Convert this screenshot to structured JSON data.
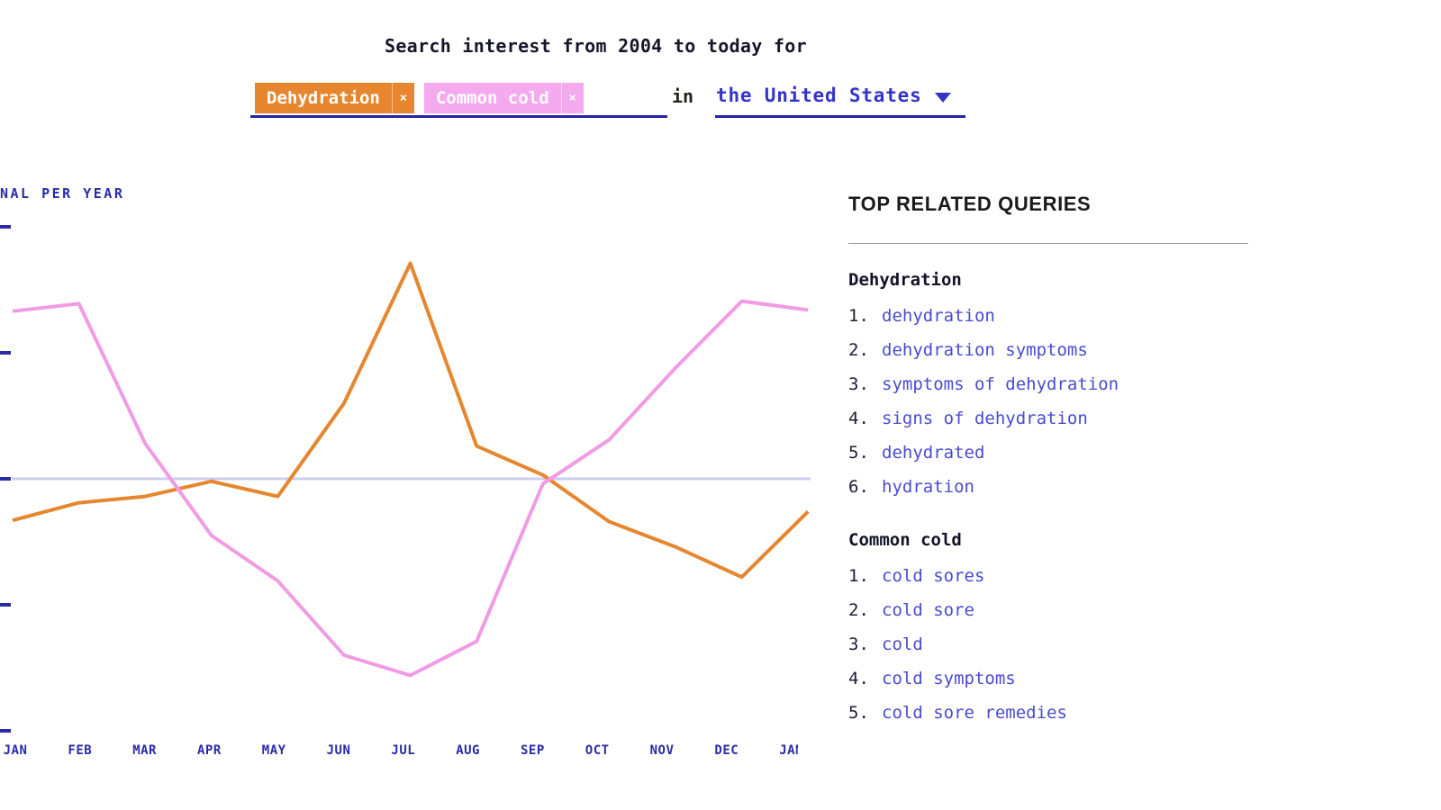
{
  "header": {
    "title": "Search interest from 2004 to today for",
    "terms": [
      {
        "label": "Dehydration",
        "remove_label": "×",
        "color": "#E6862E"
      },
      {
        "label": "Common cold",
        "remove_label": "×",
        "color": "#F5A9EE"
      }
    ],
    "in_label": "in",
    "region": {
      "label": "the United States"
    }
  },
  "related": {
    "heading": "TOP RELATED QUERIES",
    "groups": [
      {
        "title": "Dehydration",
        "items": [
          "dehydration",
          "dehydration symptoms",
          "symptoms of dehydration",
          "signs of dehydration",
          "dehydrated",
          "hydration"
        ]
      },
      {
        "title": "Common cold",
        "items": [
          "cold sores",
          "cold sore",
          "cold",
          "cold symptoms",
          "cold sore remedies"
        ]
      }
    ]
  },
  "chart_data": {
    "type": "line",
    "y_axis_label": "NAL PER YEAR",
    "x": [
      "JAN",
      "FEB",
      "MAR",
      "APR",
      "MAY",
      "JUN",
      "JUL",
      "AUG",
      "SEP",
      "OCT",
      "NOV",
      "DEC",
      "JAN"
    ],
    "series": [
      {
        "name": "Dehydration",
        "color": "#E6862E",
        "values": [
          -0.33,
          -0.19,
          -0.14,
          -0.02,
          -0.14,
          0.6,
          1.71,
          0.26,
          0.03,
          -0.34,
          -0.54,
          -0.78,
          -0.26
        ]
      },
      {
        "name": "Common cold",
        "color": "#F19BE4",
        "values": [
          1.33,
          1.39,
          0.28,
          -0.45,
          -0.81,
          -1.4,
          -1.56,
          -1.29,
          -0.04,
          0.31,
          0.88,
          1.41,
          1.34
        ]
      }
    ],
    "baseline": 0,
    "ylim": [
      -2,
      2
    ],
    "tick_step": 1,
    "grid": "baseline-only",
    "legend_position": "none",
    "notes": "y-axis has unlabeled ticks; light baseline = annual average (0)"
  },
  "colors": {
    "axis_blue": "#2B2BA6",
    "baseline_lavender": "#CDCDF2",
    "underline_blue": "#2424A4",
    "link_blue": "#4A4ACF",
    "region_blue": "#3434C6",
    "text_dark": "#17172a"
  }
}
